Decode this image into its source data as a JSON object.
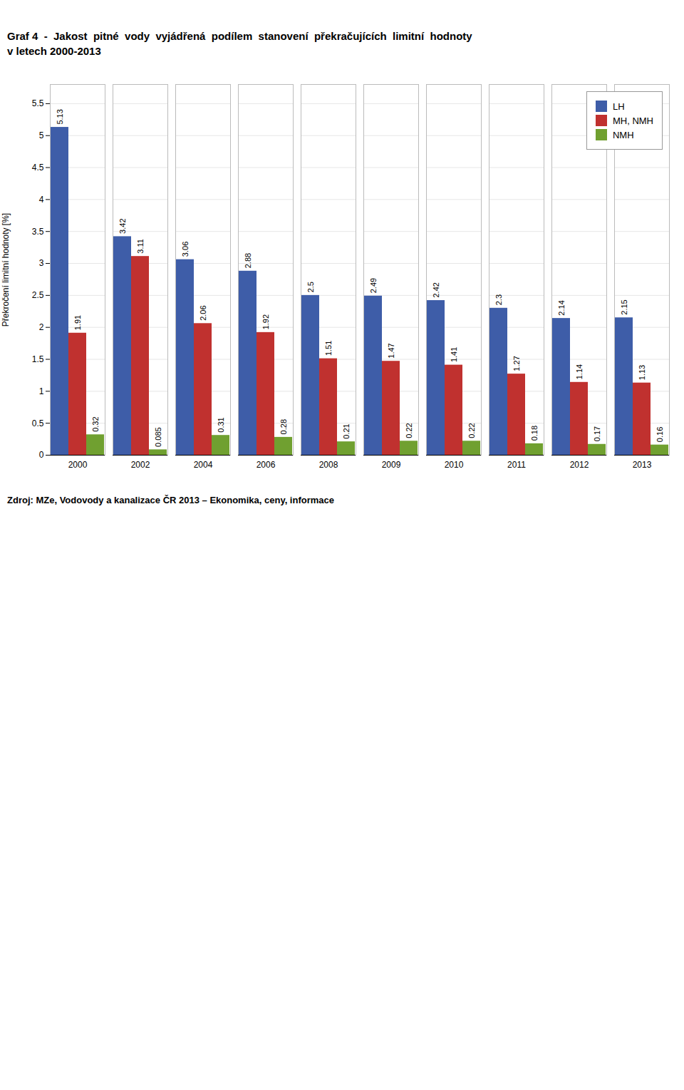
{
  "chart_data": {
    "type": "bar",
    "title": "Graf 4  -  Jakost  pitné  vody  vyjádřená  podílem  stanovení  překračujících  limitní  hodnoty\nv letech 2000-2013",
    "ylabel": "Překročení limitní hodnoty [%]",
    "annotations": [
      "Zdroj: MZe, Vodovody a kanalizace ČR 2013 – Ekonomika, ceny, informace"
    ],
    "categories": [
      "2000",
      "2002",
      "2004",
      "2006",
      "2008",
      "2009",
      "2010",
      "2011",
      "2012",
      "2013"
    ],
    "series": [
      {
        "name": "LH",
        "color": "#3E5DA8",
        "values": [
          5.13,
          3.42,
          3.06,
          2.88,
          2.5,
          2.49,
          2.42,
          2.3,
          2.14,
          2.15
        ]
      },
      {
        "name": "MH, NMH",
        "color": "#C0312F",
        "values": [
          1.91,
          3.11,
          2.06,
          1.92,
          1.51,
          1.47,
          1.41,
          1.27,
          1.14,
          1.13
        ]
      },
      {
        "name": "NMH",
        "color": "#70A030",
        "values": [
          0.32,
          0.085,
          0.31,
          0.28,
          0.21,
          0.22,
          0.22,
          0.18,
          0.17,
          0.16
        ]
      }
    ],
    "ylim": [
      0,
      5.8
    ],
    "yticks": [
      0,
      0.5,
      1,
      1.5,
      2,
      2.5,
      3,
      3.5,
      4,
      4.5,
      5,
      5.5
    ],
    "grid": true,
    "legend": "upper right",
    "data_labels": true
  }
}
